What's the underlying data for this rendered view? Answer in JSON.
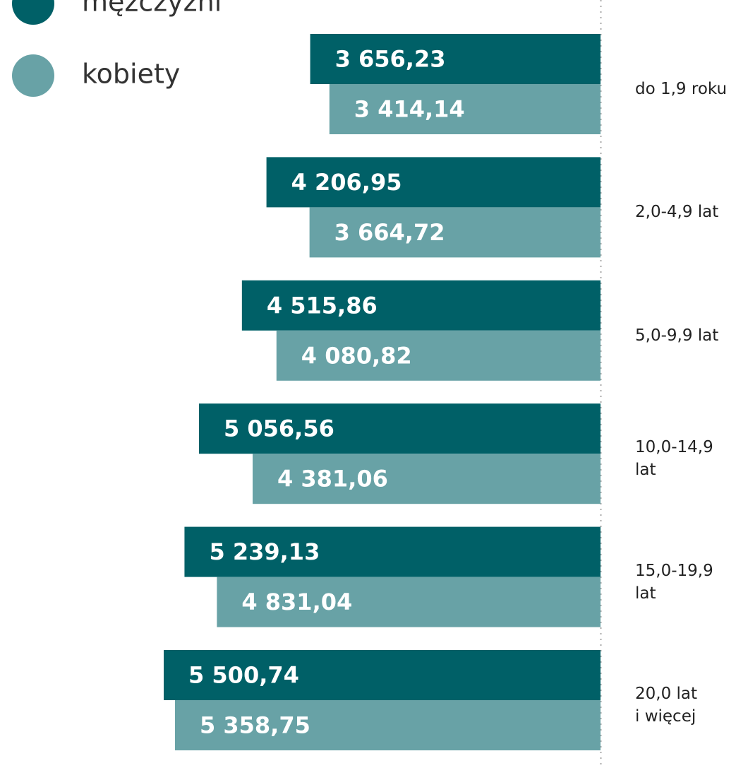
{
  "chart_data": {
    "type": "bar",
    "orientation": "horizontal",
    "categories": [
      "do 1,9 roku",
      "2,0-4,9 lat",
      "5,0-9,9 lat",
      "10,0-14,9 lat",
      "15,0-19,9 lat",
      "20,0 lat\ni więcej"
    ],
    "series": [
      {
        "name": "mężczyźni",
        "color": "#006067",
        "values": [
          3656.23,
          4206.95,
          4515.86,
          5056.56,
          5239.13,
          5500.74
        ],
        "value_labels": [
          "3 656,23",
          "4 206,95",
          "4 515,86",
          "5 056,56",
          "5 239,13",
          "5 500,74"
        ]
      },
      {
        "name": "kobiety",
        "color": "#68a2a6",
        "values": [
          3414.14,
          3664.72,
          4080.82,
          4381.06,
          4831.04,
          5358.75
        ],
        "value_labels": [
          "3 414,14",
          "3 664,72",
          "4 080,82",
          "4 381,06",
          "4 831,04",
          "5 358,75"
        ]
      }
    ]
  }
}
